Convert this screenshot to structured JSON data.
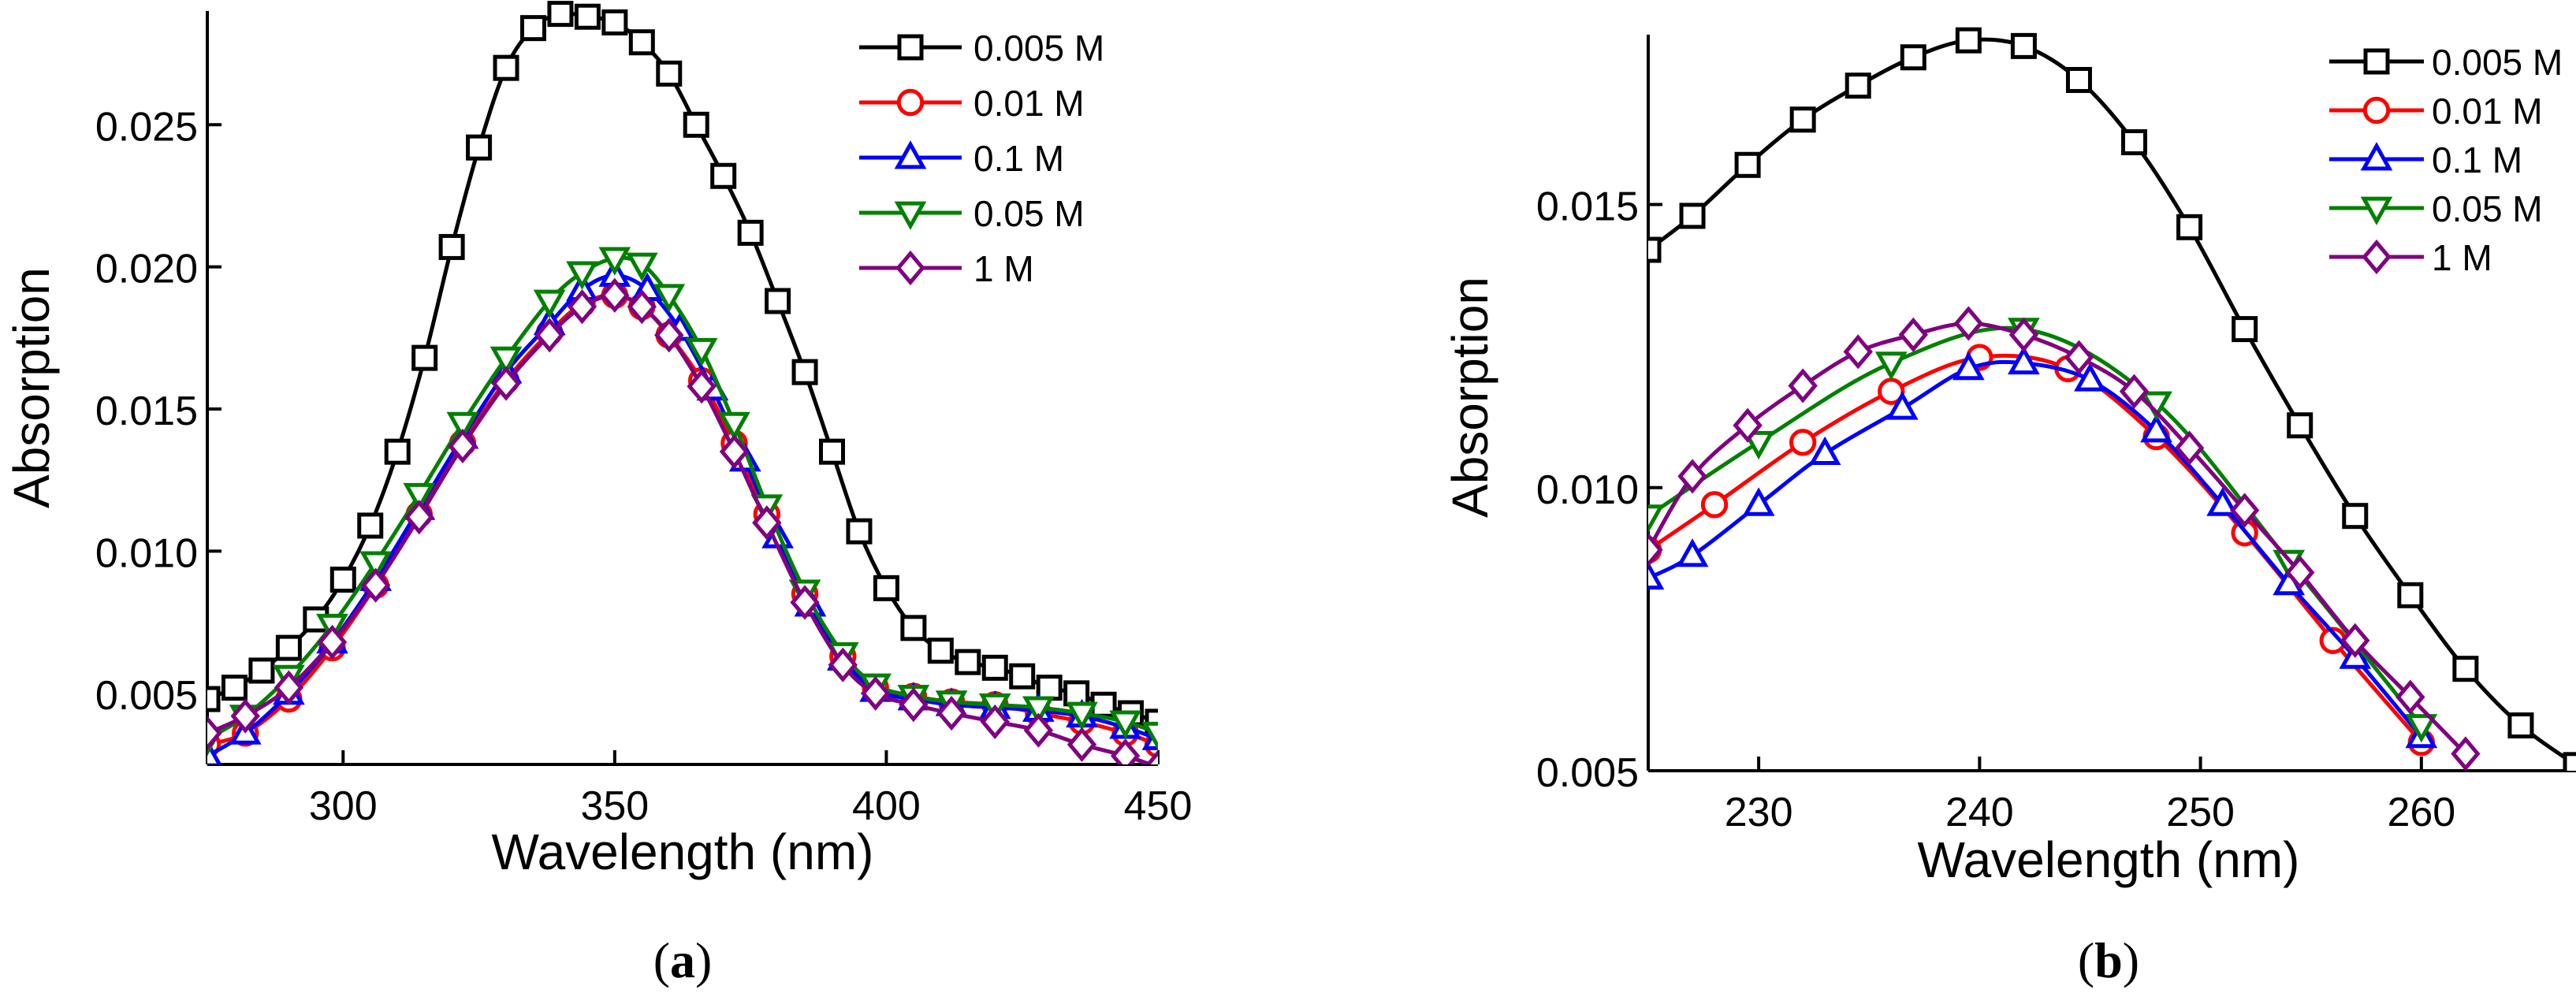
{
  "chart_data": [
    {
      "type": "line",
      "panel": "a",
      "panel_label": "(a)",
      "panel_letter": "a",
      "xlabel": "Wavelength (nm)",
      "ylabel": "Absorption",
      "xlim": [
        275,
        450
      ],
      "ylim": [
        0.0025,
        0.029
      ],
      "xticks": [
        300,
        350,
        400,
        450
      ],
      "xtick_labels": [
        "300",
        "350",
        "400",
        "450"
      ],
      "yticks": [
        0.005,
        0.01,
        0.015,
        0.02,
        0.025
      ],
      "ytick_labels": [
        "0.005",
        "0.010",
        "0.015",
        "0.020",
        "0.025"
      ],
      "legend_position": "top-right",
      "series": [
        {
          "name": "0.005 M",
          "color": "#000000",
          "marker": "square",
          "x": [
            275,
            280,
            285,
            290,
            295,
            300,
            305,
            310,
            315,
            320,
            325,
            330,
            335,
            340,
            345,
            350,
            355,
            360,
            365,
            370,
            375,
            380,
            385,
            390,
            395,
            400,
            405,
            410,
            415,
            420,
            425,
            430,
            435,
            440,
            445,
            450
          ],
          "y": [
            0.0048,
            0.0052,
            0.0058,
            0.0066,
            0.0076,
            0.009,
            0.0109,
            0.0135,
            0.0168,
            0.0207,
            0.0242,
            0.027,
            0.0284,
            0.0289,
            0.0288,
            0.0286,
            0.0279,
            0.0268,
            0.025,
            0.0232,
            0.0212,
            0.0188,
            0.0163,
            0.0135,
            0.0107,
            0.0087,
            0.0073,
            0.0065,
            0.0061,
            0.0059,
            0.0056,
            0.0052,
            0.005,
            0.0046,
            0.0043,
            0.004
          ]
        },
        {
          "name": "0.01 M",
          "color": "#ff0000",
          "marker": "circle",
          "x": [
            275,
            282,
            290,
            298,
            306,
            314,
            322,
            330,
            338,
            344,
            350,
            355,
            360,
            366,
            372,
            378,
            385,
            392,
            398,
            405,
            412,
            420,
            428,
            436,
            444,
            450
          ],
          "y": [
            0.0032,
            0.0036,
            0.0048,
            0.0066,
            0.0088,
            0.0113,
            0.0138,
            0.016,
            0.0177,
            0.0187,
            0.019,
            0.0186,
            0.0176,
            0.016,
            0.0138,
            0.0113,
            0.0085,
            0.0063,
            0.0052,
            0.0049,
            0.0047,
            0.0046,
            0.0043,
            0.004,
            0.0036,
            0.0032
          ]
        },
        {
          "name": "0.1 M",
          "color": "#0000ff",
          "marker": "triangle-up",
          "x": [
            275,
            282,
            290,
            298,
            306,
            314,
            322,
            330,
            338,
            344,
            350,
            356,
            362,
            368,
            374,
            380,
            386,
            392,
            398,
            405,
            412,
            420,
            428,
            436,
            444,
            450
          ],
          "y": [
            0.0028,
            0.0036,
            0.005,
            0.0068,
            0.009,
            0.0115,
            0.014,
            0.0163,
            0.018,
            0.0192,
            0.0197,
            0.0192,
            0.0178,
            0.0157,
            0.0132,
            0.0105,
            0.0081,
            0.0062,
            0.0051,
            0.0048,
            0.0046,
            0.0045,
            0.0044,
            0.0042,
            0.0038,
            0.0034
          ]
        },
        {
          "name": "0.05 M",
          "color": "#008000",
          "marker": "triangle-down",
          "x": [
            275,
            282,
            290,
            298,
            306,
            314,
            322,
            330,
            338,
            344,
            350,
            355,
            360,
            366,
            372,
            378,
            385,
            392,
            398,
            405,
            412,
            420,
            428,
            436,
            444,
            450
          ],
          "y": [
            0.0034,
            0.0042,
            0.0056,
            0.0074,
            0.0096,
            0.012,
            0.0145,
            0.0168,
            0.0188,
            0.0198,
            0.0203,
            0.0201,
            0.019,
            0.0171,
            0.0145,
            0.0116,
            0.0086,
            0.0064,
            0.0053,
            0.0049,
            0.0047,
            0.0046,
            0.0045,
            0.0043,
            0.004,
            0.0036
          ]
        },
        {
          "name": "1 M",
          "color": "#800080",
          "marker": "diamond",
          "x": [
            275,
            282,
            290,
            298,
            306,
            314,
            322,
            330,
            338,
            344,
            350,
            355,
            360,
            366,
            372,
            378,
            385,
            392,
            398,
            405,
            412,
            420,
            428,
            436,
            444,
            450
          ],
          "y": [
            0.0036,
            0.0042,
            0.0052,
            0.0068,
            0.0088,
            0.0112,
            0.0137,
            0.0159,
            0.0176,
            0.0186,
            0.019,
            0.0186,
            0.0176,
            0.0158,
            0.0135,
            0.011,
            0.0082,
            0.006,
            0.005,
            0.0046,
            0.0043,
            0.004,
            0.0037,
            0.0032,
            0.0028,
            0.0024
          ]
        }
      ]
    },
    {
      "type": "line",
      "panel": "b",
      "panel_label": "(b)",
      "panel_letter": "b",
      "xlabel": "Wavelength (nm)",
      "ylabel": "Absorption",
      "xlim": [
        225,
        267
      ],
      "ylim": [
        0.005,
        0.018
      ],
      "xticks": [
        230,
        240,
        250,
        260
      ],
      "xtick_labels": [
        "230",
        "240",
        "250",
        "260"
      ],
      "yticks": [
        0.005,
        0.01,
        0.015
      ],
      "ytick_labels": [
        "0.005",
        "0.010",
        "0.015"
      ],
      "legend_position": "top-right",
      "series": [
        {
          "name": "0.005 M",
          "color": "#000000",
          "marker": "square",
          "x": [
            225,
            227,
            229.5,
            232,
            234.5,
            237,
            239.5,
            242,
            244.5,
            247,
            249.5,
            252,
            254.5,
            257,
            259.5,
            262,
            264.5,
            267
          ],
          "y": [
            0.0142,
            0.0148,
            0.0157,
            0.0165,
            0.0171,
            0.0176,
            0.0179,
            0.0178,
            0.0172,
            0.0161,
            0.0146,
            0.0128,
            0.0111,
            0.0095,
            0.0081,
            0.0068,
            0.0058,
            0.0051
          ]
        },
        {
          "name": "0.01 M",
          "color": "#ff0000",
          "marker": "circle",
          "x": [
            225,
            228,
            232,
            236,
            240,
            244,
            248,
            252,
            256,
            260
          ],
          "y": [
            0.0089,
            0.0097,
            0.0108,
            0.0117,
            0.0123,
            0.0121,
            0.0109,
            0.0092,
            0.0073,
            0.0055
          ]
        },
        {
          "name": "0.1 M",
          "color": "#0000ff",
          "marker": "triangle-up",
          "x": [
            225,
            227,
            230,
            233,
            236.5,
            239.5,
            242,
            245,
            248,
            251,
            254,
            257,
            260
          ],
          "y": [
            0.0084,
            0.0088,
            0.0097,
            0.0106,
            0.0114,
            0.0121,
            0.0122,
            0.0119,
            0.011,
            0.0097,
            0.0083,
            0.007,
            0.0056
          ]
        },
        {
          "name": "0.05 M",
          "color": "#008000",
          "marker": "triangle-down",
          "x": [
            225,
            230,
            236,
            242,
            248,
            254,
            260
          ],
          "y": [
            0.0095,
            0.0108,
            0.0122,
            0.0128,
            0.0115,
            0.0087,
            0.0058
          ]
        },
        {
          "name": "1 M",
          "color": "#800080",
          "marker": "diamond",
          "x": [
            225,
            227,
            229.5,
            232,
            234.5,
            237,
            239.5,
            242,
            244.5,
            247,
            249.5,
            252,
            254.5,
            257,
            259.5,
            262
          ],
          "y": [
            0.0089,
            0.0102,
            0.0111,
            0.0118,
            0.0124,
            0.0127,
            0.0129,
            0.0127,
            0.0123,
            0.0117,
            0.0107,
            0.0096,
            0.0085,
            0.0073,
            0.0063,
            0.0053
          ]
        }
      ]
    }
  ]
}
